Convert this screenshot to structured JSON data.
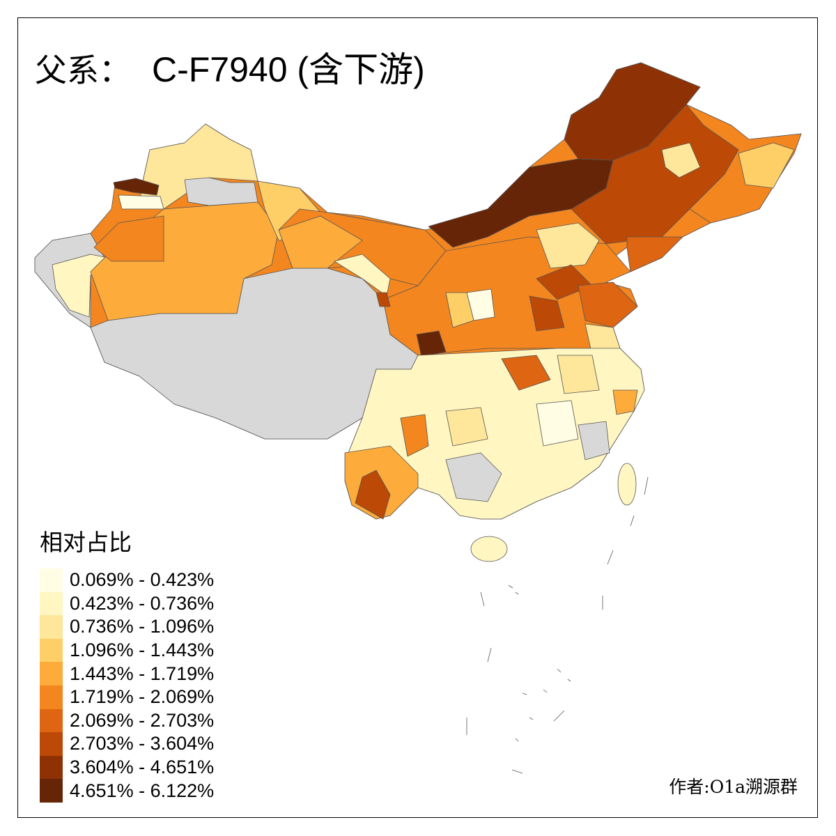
{
  "title": {
    "prefix": "父系：",
    "haplogroup": "C-F7940 (含下游)"
  },
  "legend": {
    "title": "相对占比",
    "no_data_color": "#D8D8D8",
    "classes": [
      {
        "label": "0.069% - 0.423%",
        "color": "#FFFDE4"
      },
      {
        "label": "0.423% - 0.736%",
        "color": "#FFF6C1"
      },
      {
        "label": "0.736% - 1.096%",
        "color": "#FEE69A"
      },
      {
        "label": "1.096% - 1.443%",
        "color": "#FECF67"
      },
      {
        "label": "1.443% - 1.719%",
        "color": "#FDAB3A"
      },
      {
        "label": "1.719% - 2.069%",
        "color": "#F3861F"
      },
      {
        "label": "2.069% - 2.703%",
        "color": "#DE6512"
      },
      {
        "label": "2.703% - 3.604%",
        "color": "#BC4906"
      },
      {
        "label": "3.604% - 4.651%",
        "color": "#8E3206"
      },
      {
        "label": "4.651% - 6.122%",
        "color": "#672507"
      }
    ]
  },
  "author": "作者:O1a溯源群"
}
